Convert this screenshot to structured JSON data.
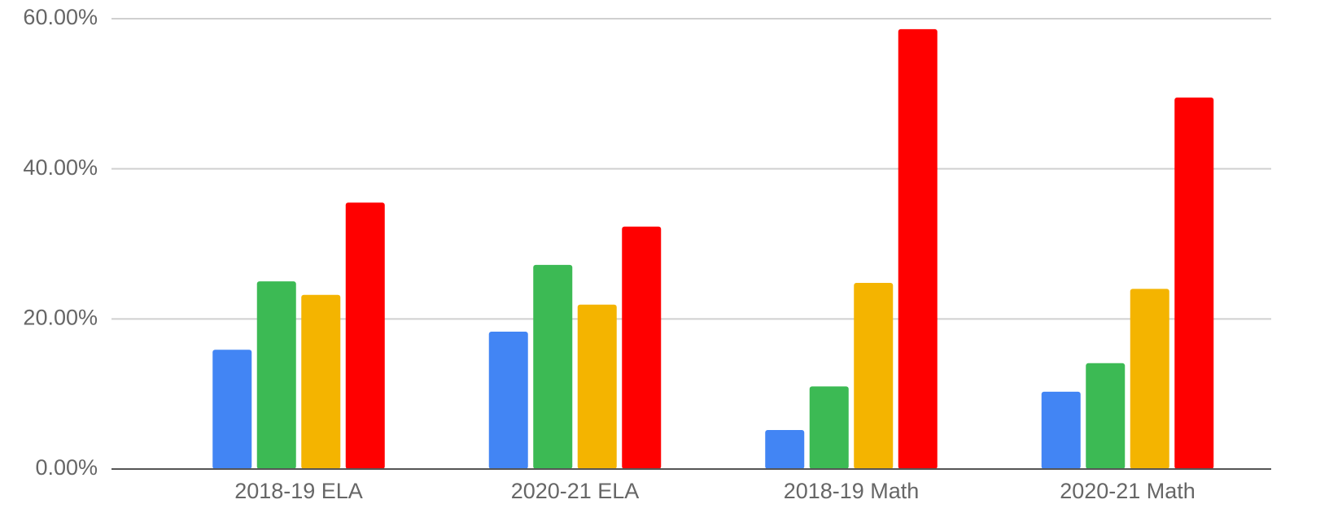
{
  "chart_data": {
    "type": "bar",
    "categories": [
      "2018-19 ELA",
      "2020-21 ELA",
      "2018-19 Math",
      "2020-21 Math"
    ],
    "series": [
      {
        "color": "#4285f4",
        "values": [
          15.9,
          18.3,
          5.2,
          10.3
        ]
      },
      {
        "color": "#3cba54",
        "values": [
          25.0,
          27.2,
          11.0,
          14.1
        ]
      },
      {
        "color": "#f4b400",
        "values": [
          23.2,
          21.9,
          24.8,
          24.0
        ]
      },
      {
        "color": "#ff0000",
        "values": [
          35.5,
          32.3,
          58.6,
          49.5
        ]
      }
    ],
    "ylim": [
      0,
      60
    ],
    "yticks": [
      {
        "value": 0,
        "label": "0.00%"
      },
      {
        "value": 20,
        "label": "20.00%"
      },
      {
        "value": 40,
        "label": "40.00%"
      },
      {
        "value": 60,
        "label": "60.00%"
      }
    ],
    "grid": true
  }
}
